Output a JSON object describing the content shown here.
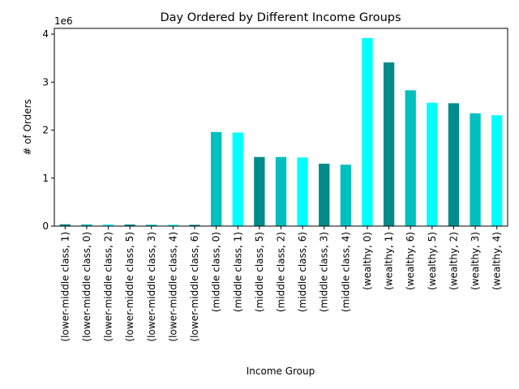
{
  "chart_data": {
    "type": "bar",
    "title": "Day Ordered by Different Income Groups",
    "xlabel": "Income Group",
    "ylabel": "# of  Orders",
    "offset_text": "1e6",
    "ylim": [
      0,
      4120000
    ],
    "yticks": [
      0,
      1000000,
      2000000,
      3000000,
      4000000
    ],
    "ytick_labels": [
      "0",
      "1",
      "2",
      "3",
      "4"
    ],
    "categories": [
      "(lower-middle class, 1)",
      "(lower-middle class, 0)",
      "(lower-middle class, 2)",
      "(lower-middle class, 5)",
      "(lower-middle class, 3)",
      "(lower-middle class, 4)",
      "(lower-middle class, 6)",
      "(middle class, 0)",
      "(middle class, 1)",
      "(middle class, 5)",
      "(middle class, 2)",
      "(middle class, 6)",
      "(middle class, 3)",
      "(middle class, 4)",
      "(wealthy, 0)",
      "(wealthy, 1)",
      "(wealthy, 6)",
      "(wealthy, 5)",
      "(wealthy, 2)",
      "(wealthy, 3)",
      "(wealthy, 4)"
    ],
    "values": [
      38000,
      36000,
      34000,
      33000,
      29000,
      28000,
      27000,
      1960000,
      1950000,
      1440000,
      1440000,
      1430000,
      1300000,
      1280000,
      3920000,
      3410000,
      2830000,
      2570000,
      2560000,
      2350000,
      2310000
    ],
    "colors": [
      "#008b8b",
      "#00bfbf",
      "#00ffff",
      "#008b8b",
      "#00bfbf",
      "#00ffff",
      "#008b8b",
      "#00bfbf",
      "#00ffff",
      "#008b8b",
      "#00bfbf",
      "#00ffff",
      "#008b8b",
      "#00bfbf",
      "#00ffff",
      "#008b8b",
      "#00bfbf",
      "#00ffff",
      "#008b8b",
      "#00bfbf",
      "#00ffff"
    ],
    "grid": false,
    "legend": "none"
  }
}
